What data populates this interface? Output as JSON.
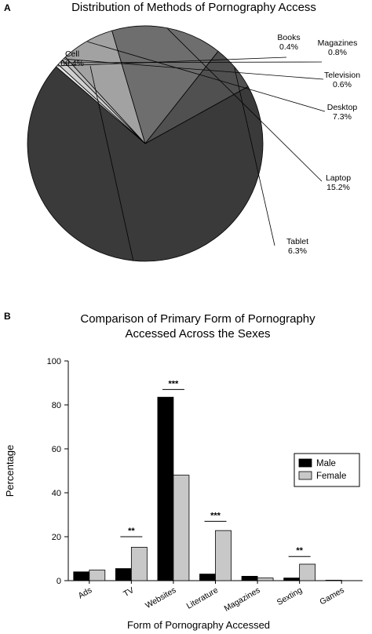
{
  "chart_data": [
    {
      "panel_label": "A",
      "type": "pie",
      "title": "Distribution of Methods of Pornography Access",
      "slices": [
        {
          "label": "Cell",
          "value": 69.4,
          "value_label": "69.4%",
          "color": "#3a3a3a"
        },
        {
          "label": "Books",
          "value": 0.4,
          "value_label": "0.4%",
          "color": "#e6e6e6"
        },
        {
          "label": "Magazines",
          "value": 0.8,
          "value_label": "0.8%",
          "color": "#cfcfcf"
        },
        {
          "label": "Television",
          "value": 0.6,
          "value_label": "0.6%",
          "color": "#bdbdbd"
        },
        {
          "label": "Desktop",
          "value": 7.3,
          "value_label": "7.3%",
          "color": "#a2a2a2"
        },
        {
          "label": "Laptop",
          "value": 15.2,
          "value_label": "15.2%",
          "color": "#6e6e6e"
        },
        {
          "label": "Tablet",
          "value": 6.3,
          "value_label": "6.3%",
          "color": "#505050"
        }
      ]
    },
    {
      "panel_label": "B",
      "type": "bar",
      "title_lines": [
        "Comparison of Primary Form of Pornography",
        "Accessed Across the Sexes"
      ],
      "xlabel": "Form of Pornography Accessed",
      "ylabel": "Percentage",
      "ylim": [
        0,
        100
      ],
      "yticks": [
        0,
        20,
        40,
        60,
        80,
        100
      ],
      "categories": [
        "Ads",
        "TV",
        "Websites",
        "Literature",
        "Magazines",
        "Sexting",
        "Games"
      ],
      "series": [
        {
          "name": "Male",
          "color": "#000000",
          "values": [
            4,
            5.5,
            83.5,
            3,
            2,
            1.2,
            0.2
          ]
        },
        {
          "name": "Female",
          "color": "#c8c8c8",
          "values": [
            4.8,
            15.2,
            48,
            22.8,
            1.2,
            7.5,
            0
          ]
        }
      ],
      "significance": [
        {
          "category": "TV",
          "label": "**",
          "y": 20
        },
        {
          "category": "Websites",
          "label": "***",
          "y": 87
        },
        {
          "category": "Literature",
          "label": "***",
          "y": 27
        },
        {
          "category": "Sexting",
          "label": "**",
          "y": 11
        }
      ],
      "legend_position": "right"
    }
  ]
}
